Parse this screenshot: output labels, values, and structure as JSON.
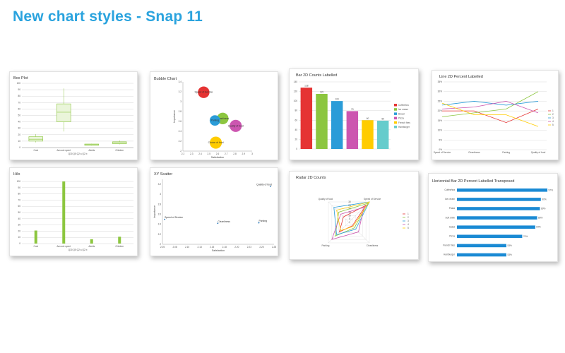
{
  "page": {
    "title": "New chart styles - Snap 11"
  },
  "chart_data": [
    {
      "id": "boxplot",
      "type": "box",
      "title": "Box Plot",
      "categories": [
        "Cost",
        "Amount spent",
        "Adults",
        "Children"
      ],
      "xlabel": "Q30 Q5 Q2 a Q2 b",
      "ylim": [
        0,
        100
      ],
      "yticks": [
        0,
        10,
        20,
        30,
        40,
        50,
        60,
        70,
        80,
        90,
        100
      ],
      "boxes": [
        {
          "min": 8,
          "q1": 10,
          "median": 13,
          "q3": 17,
          "max": 21
        },
        {
          "min": 25,
          "q1": 40,
          "median": 55,
          "q3": 68,
          "max": 92
        },
        {
          "min": 3,
          "q1": 3.5,
          "median": 4.5,
          "q3": 5.5,
          "max": 6
        },
        {
          "min": 5,
          "q1": 6,
          "median": 7.5,
          "q3": 9,
          "max": 11
        }
      ]
    },
    {
      "id": "bubble",
      "type": "scatter",
      "title": "Bubble Chart",
      "xlabel": "Satisfaction",
      "ylabel": "Importance",
      "xlim": [
        2.2,
        3.0
      ],
      "ylim": [
        2.0,
        3.4
      ],
      "xticks": [
        2.2,
        2.3,
        2.4,
        2.5,
        2.6,
        2.7,
        2.8,
        2.9,
        3.0
      ],
      "yticks": [
        2.0,
        2.2,
        2.4,
        2.6,
        2.8,
        3.0,
        3.2,
        3.4
      ],
      "points": [
        {
          "x": 2.44,
          "y": 3.19,
          "size": 4.2,
          "label": "Speed of Service",
          "color": "#e53333"
        },
        {
          "x": 2.66,
          "y": 2.66,
          "size": 4.2,
          "label": "Cleanliness",
          "color": "#8cc63f"
        },
        {
          "x": 2.57,
          "y": 2.62,
          "size": 3.8,
          "label": "Parking",
          "color": "#2a9cd8"
        },
        {
          "x": 2.81,
          "y": 2.51,
          "size": 4.4,
          "label": "Quality of food",
          "color": "#cc56b0"
        },
        {
          "x": 2.58,
          "y": 2.17,
          "size": 4.4,
          "label": "Choice of food",
          "color": "#ffcc00"
        }
      ]
    },
    {
      "id": "bar2d",
      "type": "bar",
      "title": "Bar 2D Counts Labelled",
      "ylim": [
        0,
        140
      ],
      "yticks": [
        0,
        20,
        40,
        60,
        80,
        100,
        120,
        140
      ],
      "categories": [
        "Coffee/tea",
        "Ice cream",
        "Bread",
        "Pizza",
        "French fries",
        "Hamburger"
      ],
      "values": [
        128,
        115,
        100,
        79,
        60,
        59
      ],
      "value_labels": [
        "128",
        "115",
        "100",
        "79",
        "60",
        "59"
      ],
      "colors": [
        "#e53333",
        "#8cc63f",
        "#2a9cd8",
        "#cc56b0",
        "#ffcc00",
        "#66cccc"
      ],
      "legend": "right"
    },
    {
      "id": "line2d",
      "type": "line",
      "title": "Line 2D Percent Labelled",
      "categories": [
        "Speed of Service",
        "Cleanliness",
        "Parking",
        "Quality of food"
      ],
      "ylim": [
        0,
        35
      ],
      "yticks": [
        "0%",
        "5%",
        "10%",
        "15%",
        "20%",
        "25%",
        "30%",
        "35%"
      ],
      "series": [
        {
          "name": "1",
          "values": [
            20,
            20,
            14,
            21
          ],
          "color": "#e53333"
        },
        {
          "name": "2",
          "values": [
            17,
            19,
            21,
            30
          ],
          "color": "#8cc63f"
        },
        {
          "name": "3",
          "values": [
            23,
            25,
            23,
            25
          ],
          "color": "#2a9cd8"
        },
        {
          "name": "4",
          "values": [
            21,
            22,
            25,
            19
          ],
          "color": "#cc56b0"
        },
        {
          "name": "5",
          "values": [
            24,
            18,
            18,
            12
          ],
          "color": "#ffcc00"
        }
      ],
      "legend": "right"
    },
    {
      "id": "hilo",
      "type": "bar",
      "title": "Hilo",
      "categories": [
        "Cost",
        "Amount spent",
        "Adults",
        "Children"
      ],
      "xlabel": "Q30 Q5 Q2 a Q2 b",
      "ylim": [
        0,
        100
      ],
      "yticks": [
        0,
        10,
        20,
        30,
        40,
        50,
        60,
        70,
        80,
        90,
        100
      ],
      "values": [
        21,
        100,
        7,
        11
      ],
      "color": "#8cc63f"
    },
    {
      "id": "xyscatter",
      "type": "scatter",
      "title": "XY Scatter",
      "xlabel": "Satisfaction",
      "ylabel": "Importance",
      "xlim": [
        2.05,
        2.3
      ],
      "ylim": [
        2.0,
        3.3
      ],
      "xticks": [
        "2.05",
        "2.08",
        "2.10",
        "2.13",
        "2.15",
        "2.18",
        "2.20",
        "2.23",
        "2.25",
        "2.28"
      ],
      "yticks": [
        2.0,
        2.2,
        2.4,
        2.6,
        2.8,
        3.0,
        3.2
      ],
      "points": [
        {
          "x": 2.055,
          "y": 2.5,
          "label": "Speed of Service"
        },
        {
          "x": 2.174,
          "y": 2.42,
          "label": "Cleanliness"
        },
        {
          "x": 2.266,
          "y": 2.43,
          "label": "Parking"
        },
        {
          "x": 2.292,
          "y": 3.16,
          "label": "Quality of food"
        }
      ]
    },
    {
      "id": "radar",
      "type": "radar",
      "title": "Radar 2D Counts",
      "axes": [
        "Quality of food",
        "Speed of Service",
        "Cleanliness",
        "Parking"
      ],
      "rlim": [
        0,
        30
      ],
      "rticks": [
        "0",
        "5",
        "10",
        "15",
        "20",
        "25",
        "30"
      ],
      "series": [
        {
          "name": "1",
          "values": [
            8,
            25,
            5,
            14
          ],
          "color": "#e53333"
        },
        {
          "name": "2",
          "values": [
            15,
            28,
            8,
            20
          ],
          "color": "#8cc63f"
        },
        {
          "name": "3",
          "values": [
            22,
            30,
            10,
            18
          ],
          "color": "#2a9cd8"
        },
        {
          "name": "4",
          "values": [
            12,
            22,
            14,
            25
          ],
          "color": "#cc56b0"
        },
        {
          "name": "5",
          "values": [
            18,
            30,
            6,
            12
          ],
          "color": "#ffcc00"
        }
      ],
      "legend": "right"
    },
    {
      "id": "hbar",
      "type": "bar",
      "orientation": "horizontal",
      "title": "Horizontal Bar 2D Percent Labelled Transposed",
      "categories": [
        "Coffee/tea",
        "Ice cream",
        "Pasta",
        "Soft drink",
        "Salad",
        "Pizza",
        "French fries",
        "Hamburger"
      ],
      "values": [
        97,
        90,
        89,
        86,
        84,
        70,
        53,
        53
      ],
      "value_labels": [
        "97%",
        "90%",
        "89%",
        "86%",
        "84%",
        "70%",
        "53%",
        "53%"
      ],
      "xlim": [
        0,
        100
      ],
      "color": "#1a8ad4"
    }
  ]
}
